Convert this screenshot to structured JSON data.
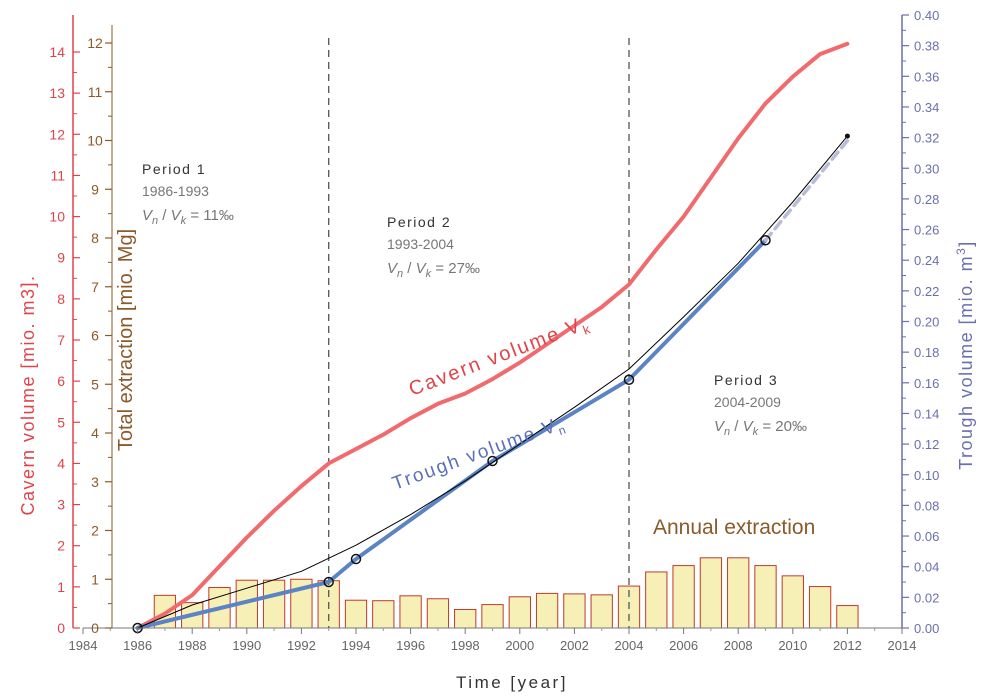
{
  "chart_data": {
    "type": "line",
    "title": "",
    "xlabel": "Time  [year]",
    "xlim": [
      1984,
      2014
    ],
    "xticks": [
      1984,
      1986,
      1988,
      1990,
      1992,
      1994,
      1996,
      1998,
      2000,
      2002,
      2004,
      2006,
      2008,
      2010,
      2012,
      2014
    ],
    "axes": {
      "cavern": {
        "label": "Cavern volume  [mio. m3].",
        "ylim": [
          0,
          14.5
        ],
        "ticks": [
          0,
          1,
          2,
          3,
          4,
          5,
          6,
          7,
          8,
          9,
          10,
          11,
          12,
          13,
          14
        ],
        "color": "#e0444b"
      },
      "extraction": {
        "label": "Total extraction [mio. Mg]",
        "ylim": [
          0,
          12.1
        ],
        "ticks": [
          0,
          1,
          2,
          3,
          4,
          5,
          6,
          7,
          8,
          9,
          10,
          11,
          12
        ],
        "color": "#8b5a2b"
      },
      "trough": {
        "label": "Trough volume  [mio. m",
        "label_sup": "3",
        "label_end": "]",
        "ylim": [
          0,
          0.4
        ],
        "ticks": [
          "0.00",
          "0.02",
          "0.04",
          "0.06",
          "0.08",
          "0.10",
          "0.12",
          "0.14",
          "0.16",
          "0.18",
          "0.20",
          "0.22",
          "0.24",
          "0.26",
          "0.28",
          "0.30",
          "0.32",
          "0.34",
          "0.36",
          "0.38",
          "0.40"
        ],
        "color": "#6a6fb0"
      }
    },
    "bars": {
      "name": "Annual extraction",
      "axis": "extraction",
      "color": "#f7f0b6",
      "edge": "#c0392b",
      "x": [
        1987,
        1988,
        1989,
        1990,
        1991,
        1992,
        1993,
        1994,
        1995,
        1996,
        1997,
        1998,
        1999,
        2000,
        2001,
        2002,
        2003,
        2004,
        2005,
        2006,
        2007,
        2008,
        2009,
        2010,
        2011,
        2012
      ],
      "values": [
        0.67,
        0.52,
        0.83,
        0.98,
        0.98,
        1.0,
        0.97,
        0.57,
        0.56,
        0.66,
        0.6,
        0.38,
        0.48,
        0.64,
        0.71,
        0.7,
        0.68,
        0.86,
        1.15,
        1.28,
        1.44,
        1.44,
        1.28,
        1.07,
        0.85,
        0.46
      ]
    },
    "series": [
      {
        "name": "Cavern volume V",
        "name_sub": "k",
        "axis": "cavern",
        "color": "#f06a6e",
        "x": [
          1986,
          1987,
          1988,
          1989,
          1990,
          1991,
          1992,
          1993,
          1994,
          1995,
          1996,
          1997,
          1998,
          1999,
          2000,
          2001,
          2002,
          2003,
          2004,
          2005,
          2006,
          2007,
          2008,
          2009,
          2010,
          2011,
          2012
        ],
        "y": [
          0.0,
          0.35,
          0.8,
          1.5,
          2.2,
          2.85,
          3.45,
          4.0,
          4.35,
          4.7,
          5.1,
          5.45,
          5.7,
          6.05,
          6.45,
          6.9,
          7.35,
          7.8,
          8.35,
          9.2,
          10.0,
          10.95,
          11.9,
          12.75,
          13.4,
          13.95,
          14.2
        ]
      },
      {
        "name": "Trough volume V",
        "name_sub": "n",
        "axis": "trough",
        "color": "#5b84c4",
        "x": [
          1986,
          1993,
          1994,
          1999,
          2004,
          2009
        ],
        "y": [
          0.0,
          0.03,
          0.045,
          0.109,
          0.162,
          0.253
        ]
      },
      {
        "name": "",
        "axis": "trough",
        "style": "thin",
        "color": "#000000",
        "x": [
          1986,
          1988,
          1990,
          1992,
          1994,
          1996,
          1998,
          2000,
          2002,
          2004,
          2006,
          2008,
          2010,
          2012
        ],
        "y": [
          0.0,
          0.015,
          0.026,
          0.037,
          0.054,
          0.074,
          0.096,
          0.12,
          0.144,
          0.169,
          0.203,
          0.238,
          0.278,
          0.321
        ]
      },
      {
        "name": "",
        "axis": "trough",
        "style": "dashed",
        "color": "#b7bcd8",
        "x": [
          2009,
          2012
        ],
        "y": [
          0.253,
          0.318
        ]
      }
    ],
    "markers": {
      "axis": "trough",
      "x": [
        1986,
        1993,
        1994,
        1999,
        2004,
        2009
      ],
      "y": [
        0.0,
        0.03,
        0.045,
        0.109,
        0.162,
        0.253
      ],
      "end_dot": {
        "x": 2012,
        "y": 0.321
      }
    },
    "period_lines": [
      1993,
      2004
    ],
    "periods": [
      {
        "title": "Period 1",
        "years": "1986-1993",
        "ratio": " = 11‰"
      },
      {
        "title": "Period 2",
        "years": "1993-2004",
        "ratio": " = 27‰"
      },
      {
        "title": "Period 3",
        "years": "2004-2009",
        "ratio": " = 20‰"
      }
    ],
    "ratio_labels": {
      "num": "V",
      "num_sub": "n",
      "den": "V",
      "den_sub": "k",
      "sep": " / "
    },
    "grid": false
  }
}
